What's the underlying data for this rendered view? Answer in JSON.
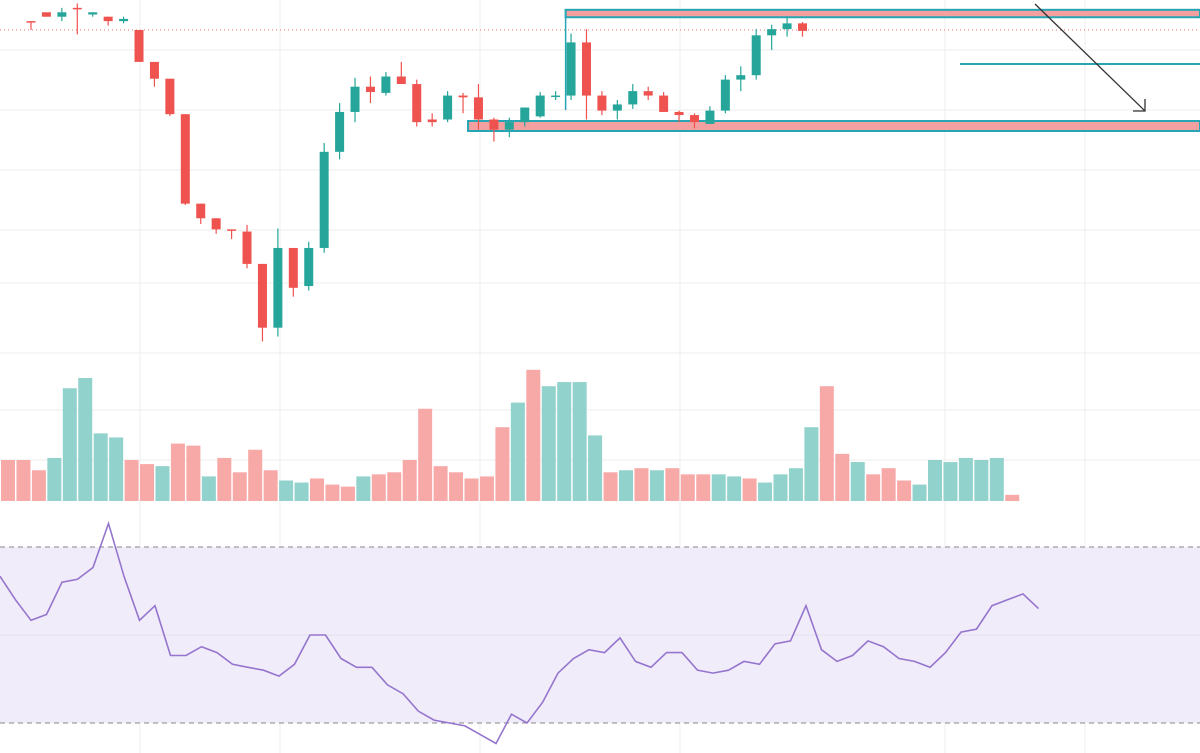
{
  "colors": {
    "up": "#26a69a",
    "down": "#ef5350",
    "volume_up": "#92d2cc",
    "volume_down": "#f7a9a7",
    "rsi_line": "#9575cd",
    "rsi_band": "#f0ecfa",
    "grid": "#eeeeee",
    "zone_fill": "#f4a0a0",
    "zone_border": "#26a6b4",
    "arrow": "#333333",
    "price_line": "#e57373"
  },
  "chart_data": [
    {
      "type": "candlestick",
      "series": [
        {
          "name": "",
          "values": [
            {
              "o": 6.2,
              "h": 6.2,
              "l": 6.0,
              "c": 6.2,
              "dir": "down"
            },
            {
              "o": 6.4,
              "h": 6.4,
              "l": 6.3,
              "c": 6.3,
              "dir": "down"
            },
            {
              "o": 6.3,
              "h": 6.5,
              "l": 6.2,
              "c": 6.4,
              "dir": "up"
            },
            {
              "o": 6.5,
              "h": 6.6,
              "l": 5.9,
              "c": 6.5,
              "dir": "down"
            },
            {
              "o": 6.4,
              "h": 6.4,
              "l": 6.3,
              "c": 6.35,
              "dir": "up"
            },
            {
              "o": 6.3,
              "h": 6.3,
              "l": 6.1,
              "c": 6.2,
              "dir": "down"
            },
            {
              "o": 6.25,
              "h": 6.3,
              "l": 6.15,
              "c": 6.2,
              "dir": "up"
            },
            {
              "o": 6.0,
              "h": 6.0,
              "l": 5.28,
              "c": 5.28,
              "dir": "down"
            },
            {
              "o": 5.28,
              "h": 5.28,
              "l": 4.72,
              "c": 4.9,
              "dir": "down"
            },
            {
              "o": 4.9,
              "h": 4.9,
              "l": 4.06,
              "c": 4.1,
              "dir": "down"
            },
            {
              "o": 4.1,
              "h": 4.1,
              "l": 2.05,
              "c": 2.08,
              "dir": "down"
            },
            {
              "o": 2.08,
              "h": 2.08,
              "l": 1.62,
              "c": 1.75,
              "dir": "down"
            },
            {
              "o": 1.75,
              "h": 1.75,
              "l": 1.4,
              "c": 1.5,
              "dir": "down"
            },
            {
              "o": 1.5,
              "h": 1.5,
              "l": 1.28,
              "c": 1.5,
              "dir": "down"
            },
            {
              "o": 1.45,
              "h": 1.6,
              "l": 0.62,
              "c": 0.72,
              "dir": "down"
            },
            {
              "o": 0.72,
              "h": 0.72,
              "l": -1.03,
              "c": -0.72,
              "dir": "down"
            },
            {
              "o": -0.72,
              "h": 1.52,
              "l": -0.92,
              "c": 1.08,
              "dir": "up"
            },
            {
              "o": 1.08,
              "h": 1.08,
              "l": -0.02,
              "c": 0.18,
              "dir": "down"
            },
            {
              "o": 0.22,
              "h": 1.22,
              "l": 0.12,
              "c": 1.08,
              "dir": "up"
            },
            {
              "o": 1.08,
              "h": 3.45,
              "l": 0.97,
              "c": 3.25,
              "dir": "up"
            },
            {
              "o": 3.25,
              "h": 4.35,
              "l": 3.08,
              "c": 4.15,
              "dir": "up"
            },
            {
              "o": 4.15,
              "h": 4.92,
              "l": 3.92,
              "c": 4.72,
              "dir": "up"
            },
            {
              "o": 4.72,
              "h": 4.95,
              "l": 4.35,
              "c": 4.6,
              "dir": "down"
            },
            {
              "o": 4.58,
              "h": 5.05,
              "l": 4.52,
              "c": 4.95,
              "dir": "up"
            },
            {
              "o": 4.95,
              "h": 5.28,
              "l": 4.82,
              "c": 4.78,
              "dir": "down"
            },
            {
              "o": 4.78,
              "h": 4.88,
              "l": 3.82,
              "c": 3.92,
              "dir": "down"
            },
            {
              "o": 3.92,
              "h": 4.12,
              "l": 3.82,
              "c": 3.98,
              "dir": "down"
            },
            {
              "o": 3.98,
              "h": 4.62,
              "l": 3.92,
              "c": 4.52,
              "dir": "up"
            },
            {
              "o": 4.52,
              "h": 4.58,
              "l": 4.12,
              "c": 4.48,
              "dir": "down"
            },
            {
              "o": 4.48,
              "h": 4.78,
              "l": 3.75,
              "c": 3.98,
              "dir": "down"
            },
            {
              "o": 3.98,
              "h": 4.02,
              "l": 3.48,
              "c": 3.75,
              "dir": "down"
            },
            {
              "o": 3.75,
              "h": 4.02,
              "l": 3.58,
              "c": 3.92,
              "dir": "up"
            },
            {
              "o": 3.92,
              "h": 4.25,
              "l": 3.82,
              "c": 4.25,
              "dir": "up"
            },
            {
              "o": 4.05,
              "h": 4.6,
              "l": 4.02,
              "c": 4.52,
              "dir": "up"
            },
            {
              "o": 4.52,
              "h": 4.62,
              "l": 4.42,
              "c": 4.52,
              "dir": "up"
            },
            {
              "o": 4.52,
              "h": 5.92,
              "l": 4.42,
              "c": 5.72,
              "dir": "up"
            },
            {
              "o": 5.72,
              "h": 6.02,
              "l": 3.98,
              "c": 4.52,
              "dir": "down"
            },
            {
              "o": 4.52,
              "h": 4.62,
              "l": 4.08,
              "c": 4.18,
              "dir": "down"
            },
            {
              "o": 4.18,
              "h": 4.42,
              "l": 3.98,
              "c": 4.32,
              "dir": "up"
            },
            {
              "o": 4.32,
              "h": 4.78,
              "l": 4.22,
              "c": 4.62,
              "dir": "up"
            },
            {
              "o": 4.62,
              "h": 4.72,
              "l": 4.42,
              "c": 4.52,
              "dir": "down"
            },
            {
              "o": 4.52,
              "h": 4.6,
              "l": 4.15,
              "c": 4.15,
              "dir": "down"
            },
            {
              "o": 4.15,
              "h": 4.18,
              "l": 3.92,
              "c": 4.08,
              "dir": "down"
            },
            {
              "o": 4.08,
              "h": 4.12,
              "l": 3.78,
              "c": 3.92,
              "dir": "down"
            },
            {
              "o": 3.88,
              "h": 4.28,
              "l": 3.88,
              "c": 4.18,
              "dir": "up"
            },
            {
              "o": 4.18,
              "h": 4.98,
              "l": 4.12,
              "c": 4.88,
              "dir": "up"
            },
            {
              "o": 4.88,
              "h": 5.18,
              "l": 4.62,
              "c": 4.98,
              "dir": "up"
            },
            {
              "o": 4.98,
              "h": 6.02,
              "l": 4.88,
              "c": 5.88,
              "dir": "up"
            },
            {
              "o": 5.88,
              "h": 6.12,
              "l": 5.55,
              "c": 6.02,
              "dir": "up"
            },
            {
              "o": 6.02,
              "h": 6.32,
              "l": 5.85,
              "c": 6.15,
              "dir": "up"
            },
            {
              "o": 6.15,
              "h": 6.18,
              "l": 5.85,
              "c": 5.98,
              "dir": "down"
            }
          ]
        }
      ],
      "annotations": {
        "resistance_zone": {
          "x_start": 34,
          "x_end": 56,
          "y_low": 6.22,
          "y_high": 6.32
        },
        "support_zone": {
          "x_start": 28,
          "x_end": 56,
          "y_low": 3.75,
          "y_high": 3.9
        },
        "horizontal_line": {
          "x_start": 46,
          "x_end": 56,
          "y": 5.45
        },
        "price_line": {
          "y": 6.0
        },
        "arrow": {
          "x1": 50,
          "y1": 6.32,
          "x2": 56,
          "y2": 4.2
        }
      },
      "ylim": [
        -2.5,
        6.5
      ],
      "xlim": [
        -0.5,
        61
      ],
      "grid": true,
      "legend": "none"
    },
    {
      "type": "bar",
      "series": [
        {
          "name": "",
          "values": [
            20,
            20,
            15,
            21,
            55,
            60,
            33,
            31,
            20,
            18,
            17,
            28,
            27,
            12,
            21,
            14,
            25,
            15,
            10,
            9,
            11,
            8,
            7,
            12,
            13,
            14,
            20,
            45,
            17,
            14,
            11,
            12,
            36,
            48,
            64,
            56,
            58,
            58,
            32,
            14,
            15,
            16,
            15,
            16,
            13,
            13,
            13,
            12,
            11,
            9,
            13,
            16,
            36,
            56,
            23,
            19,
            13,
            16,
            10,
            8,
            20,
            19,
            21,
            20,
            21,
            3
          ],
          "dir": [
            "down",
            "down",
            "down",
            "up",
            "up",
            "up",
            "up",
            "up",
            "down",
            "down",
            "up",
            "down",
            "down",
            "up",
            "down",
            "down",
            "down",
            "down",
            "up",
            "up",
            "down",
            "down",
            "down",
            "up",
            "down",
            "down",
            "down",
            "down",
            "down",
            "down",
            "down",
            "down",
            "down",
            "up",
            "down",
            "up",
            "up",
            "up",
            "up",
            "down",
            "up",
            "down",
            "up",
            "down",
            "down",
            "down",
            "up",
            "up",
            "down",
            "up",
            "up",
            "up",
            "up",
            "down",
            "down",
            "up",
            "down",
            "down",
            "down",
            "up",
            "up",
            "up",
            "up",
            "up",
            "up",
            "down"
          ]
        }
      ],
      "grid": true,
      "legend": "none"
    },
    {
      "type": "line",
      "series": [
        {
          "name": "",
          "values": [
            70,
            62,
            55,
            57,
            68,
            69,
            73,
            88,
            70,
            55,
            60,
            43,
            43,
            46,
            44,
            40,
            39,
            38,
            36,
            40,
            50,
            50,
            42,
            39,
            39,
            33,
            30,
            24,
            21,
            20,
            19,
            16,
            13,
            23,
            20,
            27,
            37,
            42,
            45,
            44,
            49,
            41,
            39,
            44,
            44,
            38,
            37,
            38,
            41,
            40,
            47,
            48,
            60,
            45,
            41,
            43,
            48,
            46,
            42,
            41,
            39,
            44,
            51,
            52,
            60,
            62,
            64,
            59
          ],
          "ylim": [
            10,
            95
          ]
        }
      ],
      "reference_lines": [
        80,
        20
      ],
      "grid": true,
      "legend": "none"
    }
  ]
}
